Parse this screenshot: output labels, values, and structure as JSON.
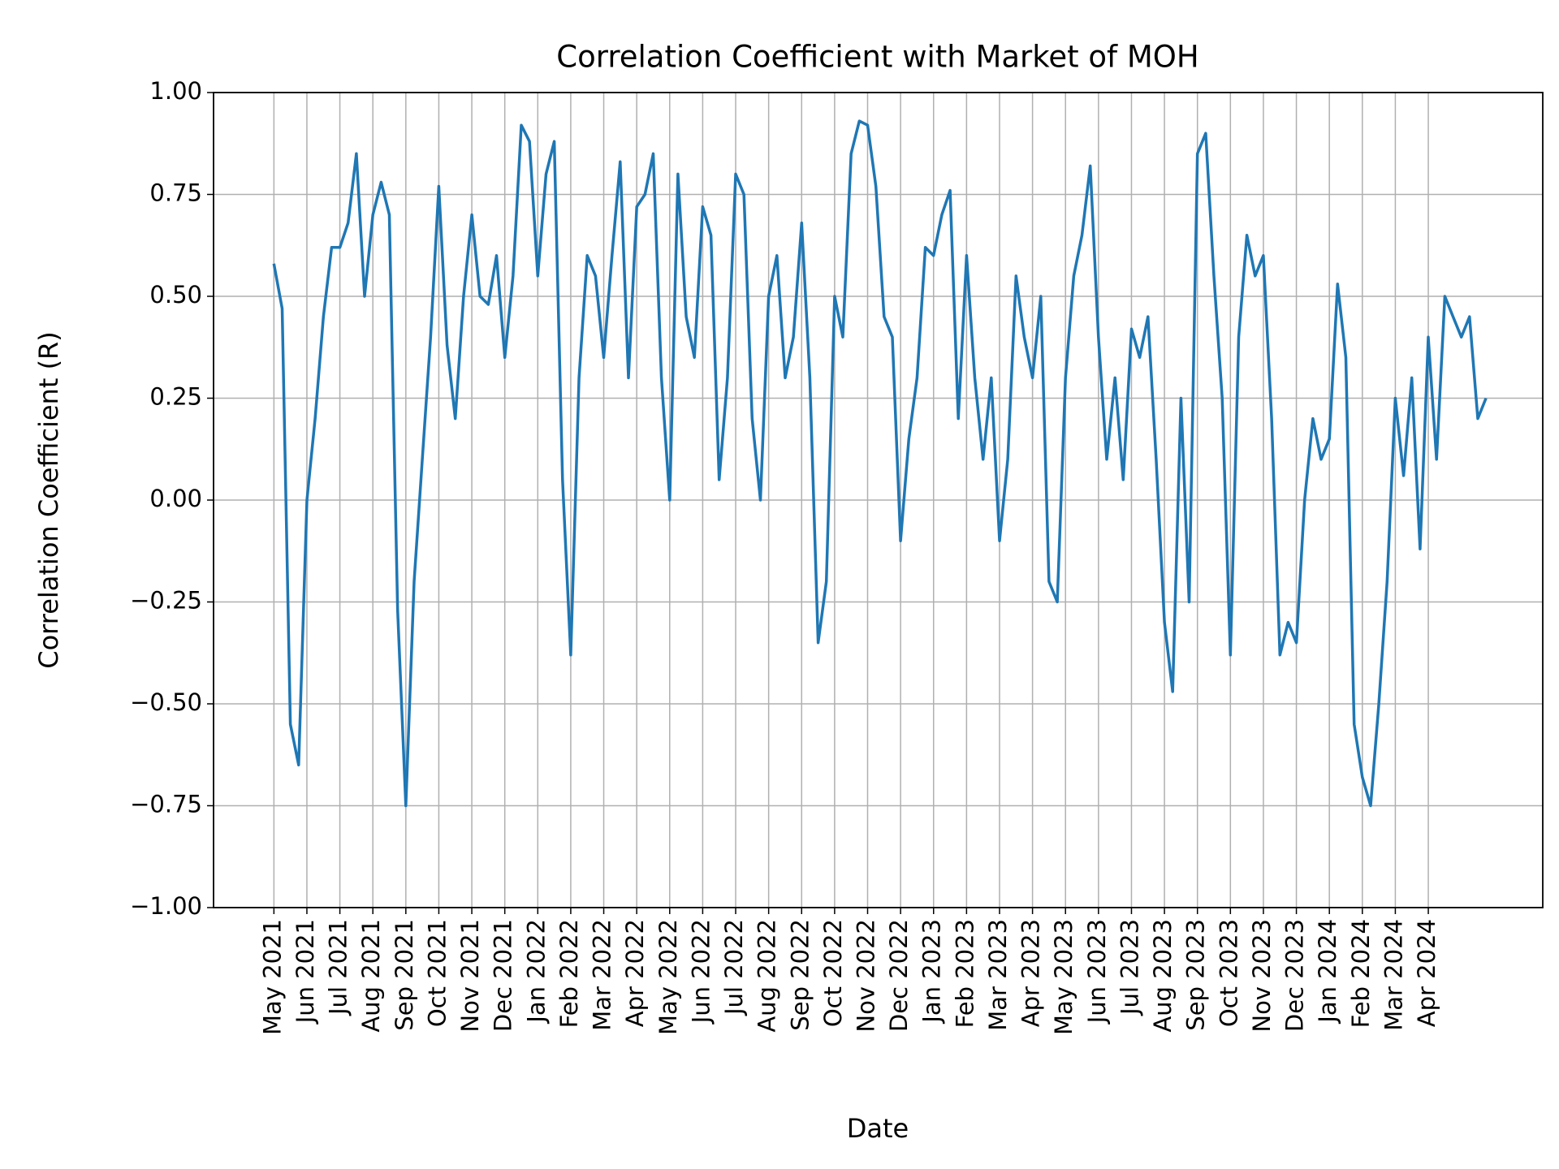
{
  "chart_data": {
    "type": "line",
    "title": "Correlation Coefficient with Market of MOH",
    "x_label": "Date",
    "y_label": "Correlation Coefficient (R)",
    "color": "#1f77b4",
    "grid": true,
    "xlim": [
      -1.83,
      38.47
    ],
    "ylim": [
      -1,
      1
    ],
    "yticks": [
      {
        "value": -1,
        "label": "−1.00"
      },
      {
        "value": -0.75,
        "label": "−0.75"
      },
      {
        "value": -0.5,
        "label": "−0.50"
      },
      {
        "value": -0.25,
        "label": "−0.25"
      },
      {
        "value": 0,
        "label": "0.00"
      },
      {
        "value": 0.25,
        "label": "0.25"
      },
      {
        "value": 0.5,
        "label": "0.50"
      },
      {
        "value": 0.75,
        "label": "0.75"
      },
      {
        "value": 1,
        "label": "1.00"
      }
    ],
    "xticks": [
      {
        "value": 0,
        "label": "May 2021"
      },
      {
        "value": 1,
        "label": "Jun 2021"
      },
      {
        "value": 2,
        "label": "Jul 2021"
      },
      {
        "value": 3,
        "label": "Aug 2021"
      },
      {
        "value": 4,
        "label": "Sep 2021"
      },
      {
        "value": 5,
        "label": "Oct 2021"
      },
      {
        "value": 6,
        "label": "Nov 2021"
      },
      {
        "value": 7,
        "label": "Dec 2021"
      },
      {
        "value": 8,
        "label": "Jan 2022"
      },
      {
        "value": 9,
        "label": "Feb 2022"
      },
      {
        "value": 10,
        "label": "Mar 2022"
      },
      {
        "value": 11,
        "label": "Apr 2022"
      },
      {
        "value": 12,
        "label": "May 2022"
      },
      {
        "value": 13,
        "label": "Jun 2022"
      },
      {
        "value": 14,
        "label": "Jul 2022"
      },
      {
        "value": 15,
        "label": "Aug 2022"
      },
      {
        "value": 16,
        "label": "Sep 2022"
      },
      {
        "value": 17,
        "label": "Oct 2022"
      },
      {
        "value": 18,
        "label": "Nov 2022"
      },
      {
        "value": 19,
        "label": "Dec 2022"
      },
      {
        "value": 20,
        "label": "Jan 2023"
      },
      {
        "value": 21,
        "label": "Feb 2023"
      },
      {
        "value": 22,
        "label": "Mar 2023"
      },
      {
        "value": 23,
        "label": "Apr 2023"
      },
      {
        "value": 24,
        "label": "May 2023"
      },
      {
        "value": 25,
        "label": "Jun 2023"
      },
      {
        "value": 26,
        "label": "Jul 2023"
      },
      {
        "value": 27,
        "label": "Aug 2023"
      },
      {
        "value": 28,
        "label": "Sep 2023"
      },
      {
        "value": 29,
        "label": "Oct 2023"
      },
      {
        "value": 30,
        "label": "Nov 2023"
      },
      {
        "value": 31,
        "label": "Dec 2023"
      },
      {
        "value": 32,
        "label": "Jan 2024"
      },
      {
        "value": 33,
        "label": "Feb 2024"
      },
      {
        "value": 34,
        "label": "Mar 2024"
      },
      {
        "value": 35,
        "label": "Apr 2024"
      }
    ],
    "x": [
      0,
      0.25,
      0.5,
      0.75,
      1,
      1.25,
      1.5,
      1.75,
      2,
      2.25,
      2.5,
      2.75,
      3,
      3.25,
      3.5,
      3.75,
      4,
      4.25,
      4.5,
      4.75,
      5,
      5.25,
      5.5,
      5.75,
      6,
      6.25,
      6.5,
      6.75,
      7,
      7.25,
      7.5,
      7.75,
      8,
      8.25,
      8.5,
      8.75,
      9,
      9.25,
      9.5,
      9.75,
      10,
      10.25,
      10.5,
      10.75,
      11,
      11.25,
      11.5,
      11.75,
      12,
      12.25,
      12.5,
      12.75,
      13,
      13.25,
      13.5,
      13.75,
      14,
      14.25,
      14.5,
      14.75,
      15,
      15.25,
      15.5,
      15.75,
      16,
      16.25,
      16.5,
      16.75,
      17,
      17.25,
      17.5,
      17.75,
      18,
      18.25,
      18.5,
      18.75,
      19,
      19.25,
      19.5,
      19.75,
      20,
      20.25,
      20.5,
      20.75,
      21,
      21.25,
      21.5,
      21.75,
      22,
      22.25,
      22.5,
      22.75,
      23,
      23.25,
      23.5,
      23.75,
      24,
      24.25,
      24.5,
      24.75,
      25,
      25.25,
      25.5,
      25.75,
      26,
      26.25,
      26.5,
      26.75,
      27,
      27.25,
      27.5,
      27.75,
      28,
      28.25,
      28.5,
      28.75,
      29,
      29.25,
      29.5,
      29.75,
      30,
      30.25,
      30.5,
      30.75,
      31,
      31.25,
      31.5,
      31.75,
      32,
      32.25,
      32.5,
      32.75,
      33,
      33.25,
      33.5,
      33.75,
      34,
      34.25,
      34.5,
      34.75,
      35,
      35.25,
      35.5,
      35.75,
      36,
      36.25,
      36.5,
      36.75
    ],
    "values": [
      0.58,
      0.47,
      -0.55,
      -0.65,
      0.0,
      0.2,
      0.45,
      0.62,
      0.62,
      0.68,
      0.85,
      0.5,
      0.7,
      0.78,
      0.7,
      -0.27,
      -0.75,
      -0.2,
      0.1,
      0.4,
      0.77,
      0.38,
      0.2,
      0.5,
      0.7,
      0.5,
      0.48,
      0.6,
      0.35,
      0.55,
      0.92,
      0.88,
      0.55,
      0.8,
      0.88,
      0.05,
      -0.38,
      0.3,
      0.6,
      0.55,
      0.35,
      0.6,
      0.83,
      0.3,
      0.72,
      0.75,
      0.85,
      0.3,
      0.0,
      0.8,
      0.45,
      0.35,
      0.72,
      0.65,
      0.05,
      0.3,
      0.8,
      0.75,
      0.2,
      0.0,
      0.5,
      0.6,
      0.3,
      0.4,
      0.68,
      0.3,
      -0.35,
      -0.2,
      0.5,
      0.4,
      0.85,
      0.93,
      0.92,
      0.77,
      0.45,
      0.4,
      -0.1,
      0.15,
      0.3,
      0.62,
      0.6,
      0.7,
      0.76,
      0.2,
      0.6,
      0.3,
      0.1,
      0.3,
      -0.1,
      0.1,
      0.55,
      0.4,
      0.3,
      0.5,
      -0.2,
      -0.25,
      0.3,
      0.55,
      0.65,
      0.82,
      0.4,
      0.1,
      0.3,
      0.05,
      0.42,
      0.35,
      0.45,
      0.1,
      -0.3,
      -0.47,
      0.25,
      -0.25,
      0.85,
      0.9,
      0.55,
      0.25,
      -0.38,
      0.4,
      0.65,
      0.55,
      0.6,
      0.2,
      -0.38,
      -0.3,
      -0.35,
      0.0,
      0.2,
      0.1,
      0.15,
      0.53,
      0.35,
      -0.55,
      -0.68,
      -0.75,
      -0.5,
      -0.2,
      0.25,
      0.06,
      0.3,
      -0.12,
      0.4,
      0.1,
      0.5,
      0.45,
      0.4,
      0.45,
      0.2,
      0.25
    ]
  }
}
